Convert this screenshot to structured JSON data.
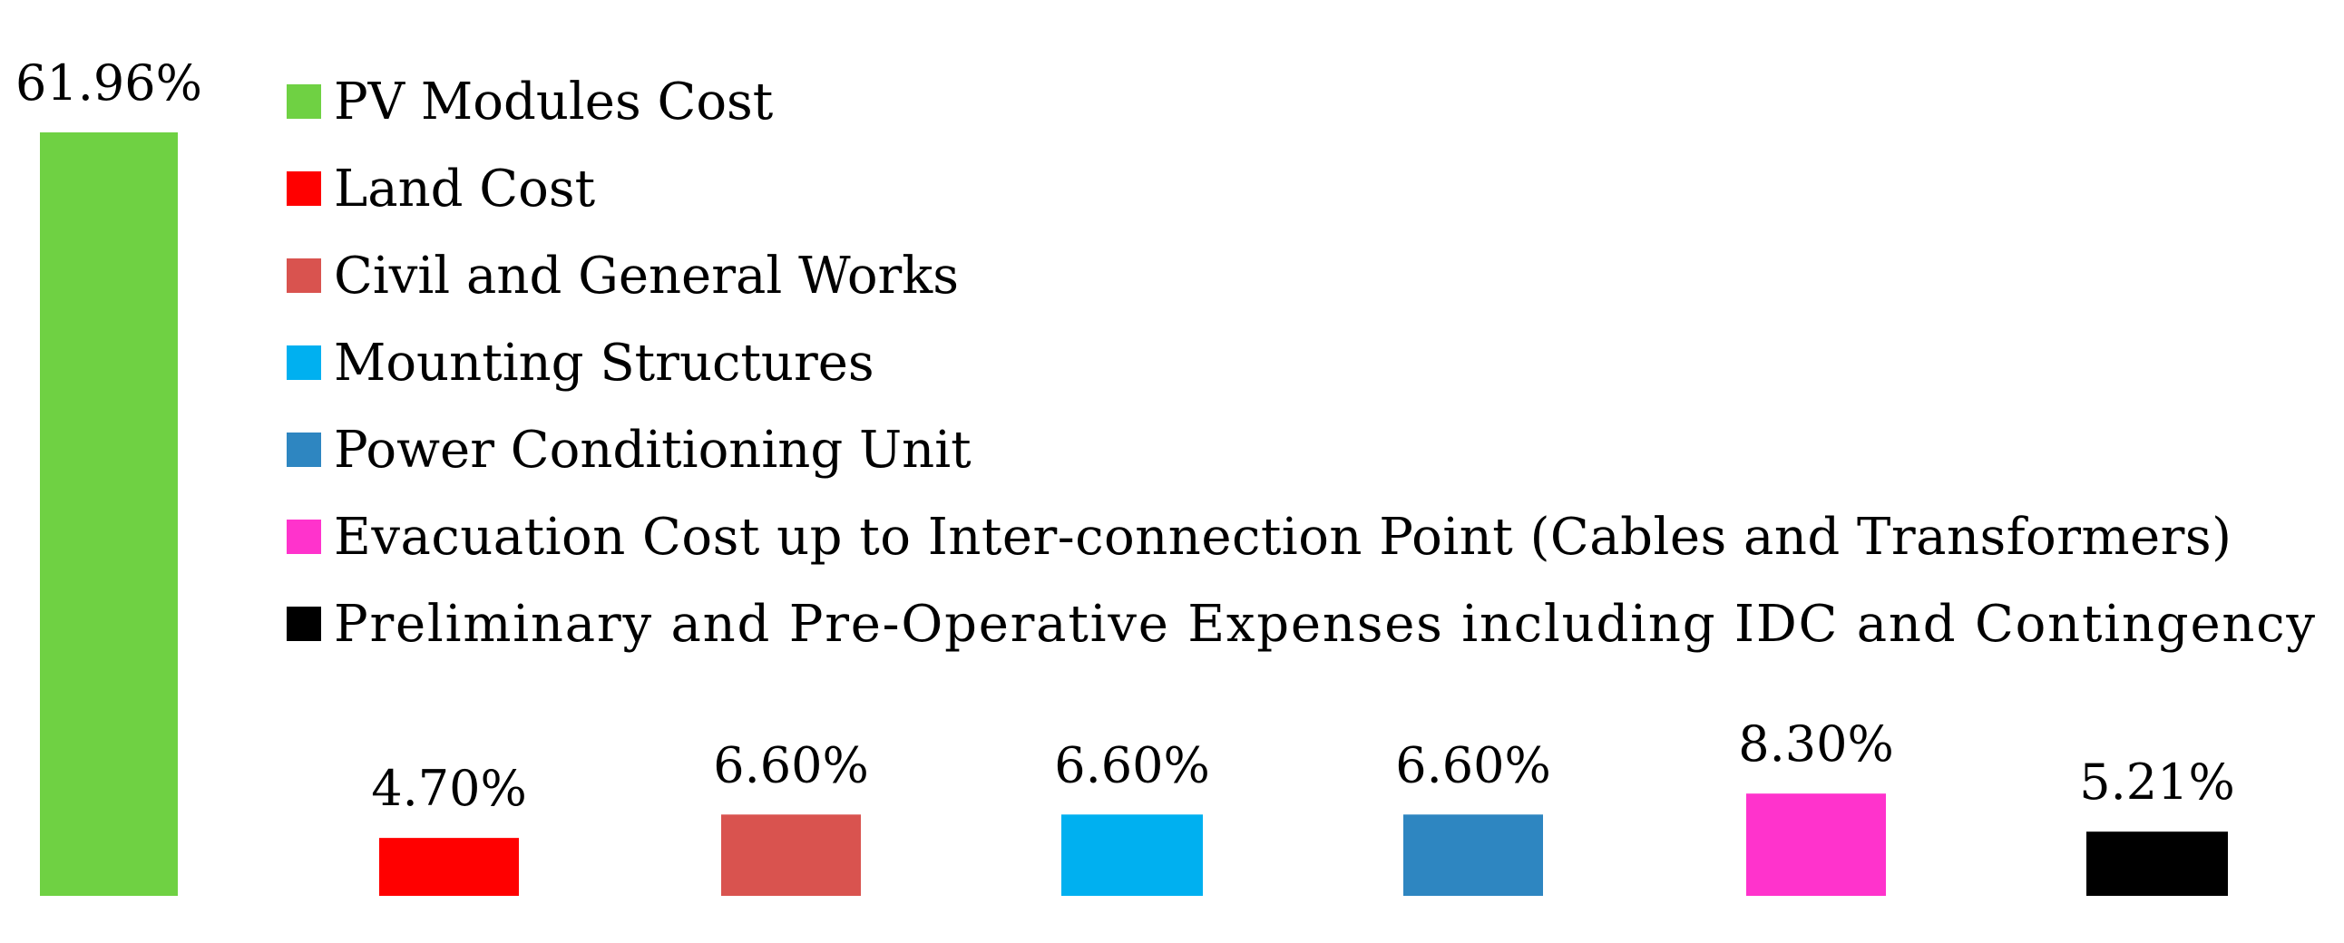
{
  "chart_data": {
    "type": "bar",
    "categories": [
      "PV Modules Cost",
      "Land Cost",
      "Civil and General Works",
      "Mounting Structures",
      "Power Conditioning Unit",
      "Evacuation  Cost  up  to  Inter-connection  Point  (Cables  and Transformers)",
      "Preliminary   and   Pre-Operative Expenses   including   IDC   and Contingency"
    ],
    "values": [
      61.96,
      4.7,
      6.6,
      6.6,
      6.6,
      8.3,
      5.21
    ],
    "data_labels": [
      "61.96%",
      "4.70%",
      "6.60%",
      "6.60%",
      "6.60%",
      "8.30%",
      "5.21%"
    ],
    "colors": [
      "#6fd143",
      "#ff0000",
      "#d9534f",
      "#00b0f0",
      "#2e86c1",
      "#ff33cc",
      "#000000"
    ],
    "title": "",
    "xlabel": "",
    "ylabel": "",
    "ylim": [
      0,
      61.96
    ],
    "grid": false,
    "legend": "top"
  }
}
